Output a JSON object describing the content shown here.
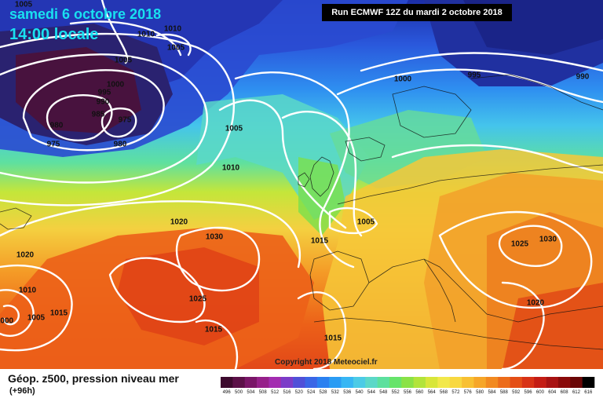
{
  "header": {
    "date": "samedi 6 octobre 2018",
    "time": "14:00 locale",
    "run": "Run ECMWF 12Z du mardi 2 octobre 2018"
  },
  "copyright": "Copyright 2018 Meteociel.fr",
  "footer": {
    "title": "Géop. z500, pression niveau mer",
    "subtitle": "(+96h)"
  },
  "legend": {
    "values": [
      "496",
      "500",
      "504",
      "508",
      "512",
      "516",
      "520",
      "524",
      "528",
      "532",
      "536",
      "540",
      "544",
      "548",
      "552",
      "556",
      "560",
      "564",
      "568",
      "572",
      "576",
      "580",
      "584",
      "588",
      "592",
      "596",
      "600",
      "604",
      "608",
      "612",
      "616"
    ],
    "colors": [
      "#3d0a2e",
      "#5c1048",
      "#7a1668",
      "#96208a",
      "#a32cb0",
      "#7c3cc8",
      "#5050d8",
      "#3a66e6",
      "#2a80f0",
      "#2a9cf4",
      "#37b6f4",
      "#4ccbe6",
      "#5cd8c8",
      "#5ce09e",
      "#66e46a",
      "#8ae246",
      "#b2e43a",
      "#d8e63a",
      "#f2e84a",
      "#f8d840",
      "#f8c032",
      "#f6a628",
      "#f28a20",
      "#ec6c1a",
      "#e44e16",
      "#d83216",
      "#c41c14",
      "#a81212",
      "#8a0a0a",
      "#6a0606",
      "#000000"
    ]
  },
  "map": {
    "pressure_labels": [
      {
        "text": "1005"
      },
      {
        "text": "1010"
      },
      {
        "text": "1010"
      },
      {
        "text": "1005"
      },
      {
        "text": "1005"
      },
      {
        "text": "1000"
      },
      {
        "text": "995"
      },
      {
        "text": "990"
      },
      {
        "text": "985"
      },
      {
        "text": "980"
      },
      {
        "text": "975"
      },
      {
        "text": "975"
      },
      {
        "text": "980"
      },
      {
        "text": "1005"
      },
      {
        "text": "1010"
      },
      {
        "text": "1000"
      },
      {
        "text": "995"
      },
      {
        "text": "990"
      },
      {
        "text": "1020"
      },
      {
        "text": "1030"
      },
      {
        "text": "1020"
      },
      {
        "text": "1015"
      },
      {
        "text": "1005"
      },
      {
        "text": "1025"
      },
      {
        "text": "1025"
      },
      {
        "text": "1030"
      },
      {
        "text": "1010"
      },
      {
        "text": "1005"
      },
      {
        "text": "1015"
      },
      {
        "text": "1000"
      },
      {
        "text": "1015"
      },
      {
        "text": "1020"
      },
      {
        "text": "1015"
      }
    ]
  }
}
